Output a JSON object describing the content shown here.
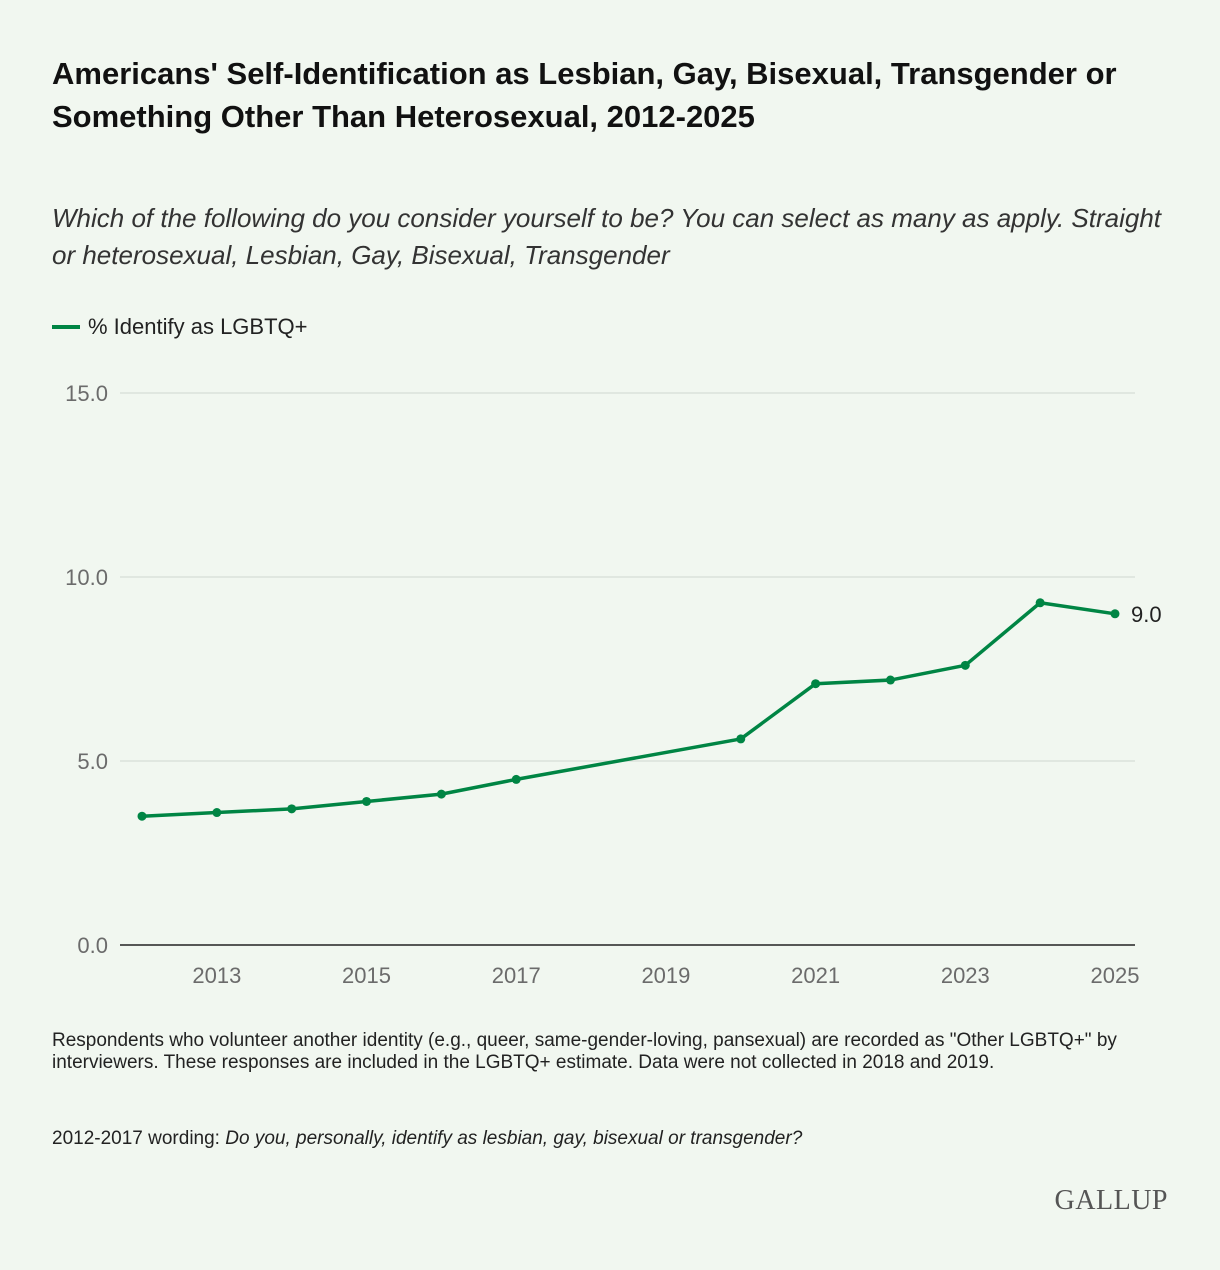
{
  "title": "Americans' Self-Identification as Lesbian, Gay, Bisexual, Transgender or Something Other Than Heterosexual, 2012-2025",
  "subtitle": "Which of the following do you consider yourself to be? You can select as many as apply. Straight or heterosexual, Lesbian, Gay, Bisexual, Transgender",
  "footnote": "Respondents who volunteer another identity (e.g., queer, same-gender-loving, pansexual) are recorded as \"Other LGBTQ+\" by interviewers. These responses are included in the LGBTQ+ estimate. Data were not collected in 2018 and 2019.",
  "wording_label": "2012-2017 wording: ",
  "wording_text": "Do you, personally, identify as lesbian, gay, bisexual or transgender?",
  "logo": "GALLUP",
  "chart_data": {
    "type": "line",
    "title": "Americans' Self-Identification as Lesbian, Gay, Bisexual, Transgender or Something Other Than Heterosexual, 2012-2025",
    "xlabel": "",
    "ylabel": "",
    "ylim": [
      0,
      15
    ],
    "xlim": [
      2012,
      2025
    ],
    "yticks": [
      "0.0",
      "5.0",
      "10.0",
      "15.0"
    ],
    "xticks": [
      "2013",
      "2015",
      "2017",
      "2019",
      "2021",
      "2023",
      "2025"
    ],
    "grid": true,
    "legend_position": "top-left",
    "color": "#008544",
    "series": [
      {
        "name": "% Identify as LGBTQ+",
        "x": [
          2012,
          2013,
          2014,
          2015,
          2016,
          2017,
          2020,
          2021,
          2022,
          2023,
          2024,
          2025
        ],
        "values": [
          3.5,
          3.6,
          3.7,
          3.9,
          4.1,
          4.5,
          5.6,
          7.1,
          7.2,
          7.6,
          9.3,
          9.0
        ]
      }
    ],
    "end_label": "9.0"
  }
}
